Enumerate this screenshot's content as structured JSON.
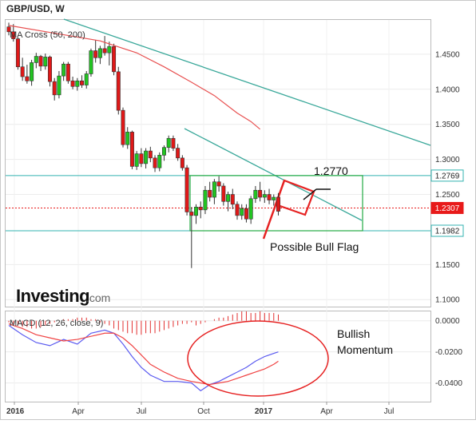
{
  "chart_data": [
    {
      "type": "candlestick",
      "title": "GBP/USD, W",
      "legend": "MA Cross (50, 200)",
      "ylim": [
        1.09,
        1.5
      ],
      "y_ticks": [
        "1.4500",
        "1.4000",
        "1.3500",
        "1.3000",
        "1.2500",
        "1.1500",
        "1.1000"
      ],
      "price_tags": [
        {
          "name": "upper",
          "label": "1.2769",
          "value": 1.2769,
          "color": "#33b3b0"
        },
        {
          "name": "current",
          "label": "1.2307",
          "value": 1.2307,
          "color": "#e81a1a"
        },
        {
          "name": "lower",
          "label": "1.1982",
          "value": 1.1982,
          "color": "#33b3b0"
        }
      ],
      "annotations": {
        "level_label": "1.2770",
        "pattern_label": "Possible Bull Flag"
      },
      "grid": true,
      "candles": [
        [
          1.489,
          1.495,
          1.477,
          1.482
        ],
        [
          1.482,
          1.493,
          1.468,
          1.472
        ],
        [
          1.472,
          1.474,
          1.428,
          1.432
        ],
        [
          1.432,
          1.445,
          1.412,
          1.418
        ],
        [
          1.418,
          1.435,
          1.408,
          1.412
        ],
        [
          1.412,
          1.442,
          1.405,
          1.438
        ],
        [
          1.438,
          1.452,
          1.43,
          1.447
        ],
        [
          1.447,
          1.449,
          1.426,
          1.433
        ],
        [
          1.433,
          1.451,
          1.428,
          1.446
        ],
        [
          1.446,
          1.448,
          1.404,
          1.411
        ],
        [
          1.411,
          1.416,
          1.384,
          1.392
        ],
        [
          1.392,
          1.426,
          1.387,
          1.419
        ],
        [
          1.419,
          1.439,
          1.412,
          1.436
        ],
        [
          1.436,
          1.439,
          1.408,
          1.412
        ],
        [
          1.412,
          1.418,
          1.4,
          1.404
        ],
        [
          1.404,
          1.416,
          1.398,
          1.412
        ],
        [
          1.412,
          1.42,
          1.402,
          1.406
        ],
        [
          1.406,
          1.426,
          1.401,
          1.422
        ],
        [
          1.422,
          1.458,
          1.418,
          1.455
        ],
        [
          1.455,
          1.47,
          1.438,
          1.445
        ],
        [
          1.445,
          1.462,
          1.436,
          1.458
        ],
        [
          1.458,
          1.476,
          1.448,
          1.452
        ],
        [
          1.452,
          1.468,
          1.434,
          1.461
        ],
        [
          1.461,
          1.465,
          1.42,
          1.425
        ],
        [
          1.425,
          1.432,
          1.364,
          1.37
        ],
        [
          1.37,
          1.374,
          1.317,
          1.321
        ],
        [
          1.321,
          1.346,
          1.315,
          1.339
        ],
        [
          1.339,
          1.341,
          1.286,
          1.29
        ],
        [
          1.29,
          1.312,
          1.285,
          1.308
        ],
        [
          1.308,
          1.316,
          1.289,
          1.294
        ],
        [
          1.294,
          1.316,
          1.287,
          1.312
        ],
        [
          1.312,
          1.318,
          1.296,
          1.302
        ],
        [
          1.302,
          1.306,
          1.282,
          1.288
        ],
        [
          1.288,
          1.31,
          1.283,
          1.306
        ],
        [
          1.306,
          1.32,
          1.298,
          1.317
        ],
        [
          1.317,
          1.334,
          1.31,
          1.33
        ],
        [
          1.33,
          1.334,
          1.312,
          1.316
        ],
        [
          1.316,
          1.322,
          1.298,
          1.302
        ],
        [
          1.302,
          1.306,
          1.284,
          1.288
        ],
        [
          1.288,
          1.292,
          1.22,
          1.225
        ],
        [
          1.225,
          1.232,
          1.145,
          1.22
        ],
        [
          1.22,
          1.236,
          1.208,
          1.232
        ],
        [
          1.232,
          1.24,
          1.216,
          1.228
        ],
        [
          1.228,
          1.262,
          1.222,
          1.256
        ],
        [
          1.256,
          1.268,
          1.24,
          1.246
        ],
        [
          1.246,
          1.272,
          1.236,
          1.268
        ],
        [
          1.268,
          1.276,
          1.254,
          1.262
        ],
        [
          1.262,
          1.266,
          1.234,
          1.24
        ],
        [
          1.24,
          1.254,
          1.226,
          1.25
        ],
        [
          1.25,
          1.258,
          1.229,
          1.236
        ],
        [
          1.236,
          1.24,
          1.214,
          1.22
        ],
        [
          1.22,
          1.236,
          1.214,
          1.23
        ],
        [
          1.23,
          1.236,
          1.21,
          1.215
        ],
        [
          1.215,
          1.248,
          1.208,
          1.244
        ],
        [
          1.244,
          1.262,
          1.238,
          1.256
        ],
        [
          1.256,
          1.268,
          1.24,
          1.246
        ],
        [
          1.246,
          1.256,
          1.238,
          1.25
        ],
        [
          1.25,
          1.258,
          1.236,
          1.242
        ],
        [
          1.242,
          1.25,
          1.234,
          1.246
        ],
        [
          1.246,
          1.252,
          1.22,
          1.226
        ]
      ],
      "ma50": [
        [
          0,
          1.491
        ],
        [
          10,
          1.48
        ],
        [
          20,
          1.469
        ],
        [
          28,
          1.452
        ],
        [
          34,
          1.432
        ],
        [
          40,
          1.41
        ],
        [
          45,
          1.391
        ],
        [
          50,
          1.366
        ],
        [
          53,
          1.354
        ],
        [
          55,
          1.343
        ]
      ]
    },
    {
      "type": "line",
      "title": "MACD (12, 26, close, 9)",
      "y_ticks": [
        "0.0000",
        "-0.0200",
        "-0.0400"
      ],
      "x_ticks": [
        "2016",
        "Apr",
        "Jul",
        "Oct",
        "2017",
        "Apr",
        "Jul"
      ],
      "annotation": "Bullish\nMomentum",
      "series": [
        {
          "name": "MACD",
          "color": "#5b5bf0",
          "values": [
            [
              0,
              -0.003
            ],
            [
              3,
              -0.009
            ],
            [
              6,
              -0.014
            ],
            [
              9,
              -0.016
            ],
            [
              12,
              -0.012
            ],
            [
              15,
              -0.015
            ],
            [
              18,
              -0.008
            ],
            [
              21,
              -0.006
            ],
            [
              23,
              -0.008
            ],
            [
              25,
              -0.015
            ],
            [
              27,
              -0.023
            ],
            [
              29,
              -0.03
            ],
            [
              31,
              -0.035
            ],
            [
              34,
              -0.039
            ],
            [
              37,
              -0.039
            ],
            [
              40,
              -0.04
            ],
            [
              42,
              -0.045
            ],
            [
              44,
              -0.041
            ],
            [
              46,
              -0.039
            ],
            [
              48,
              -0.036
            ],
            [
              50,
              -0.033
            ],
            [
              52,
              -0.03
            ],
            [
              54,
              -0.026
            ],
            [
              56,
              -0.023
            ],
            [
              58,
              -0.021
            ],
            [
              59,
              -0.02
            ]
          ]
        },
        {
          "name": "Signal",
          "color": "#f04444",
          "values": [
            [
              0,
              -0.002
            ],
            [
              3,
              -0.005
            ],
            [
              6,
              -0.009
            ],
            [
              9,
              -0.011
            ],
            [
              12,
              -0.013
            ],
            [
              15,
              -0.012
            ],
            [
              18,
              -0.01
            ],
            [
              21,
              -0.008
            ],
            [
              23,
              -0.008
            ],
            [
              25,
              -0.011
            ],
            [
              27,
              -0.016
            ],
            [
              29,
              -0.022
            ],
            [
              31,
              -0.028
            ],
            [
              34,
              -0.033
            ],
            [
              37,
              -0.037
            ],
            [
              40,
              -0.039
            ],
            [
              42,
              -0.04
            ],
            [
              44,
              -0.041
            ],
            [
              46,
              -0.04
            ],
            [
              48,
              -0.039
            ],
            [
              50,
              -0.037
            ],
            [
              52,
              -0.035
            ],
            [
              54,
              -0.033
            ],
            [
              56,
              -0.031
            ],
            [
              58,
              -0.028
            ],
            [
              59,
              -0.026
            ]
          ]
        }
      ],
      "histogram": [
        -0.001,
        -0.002,
        -0.003,
        -0.004,
        -0.004,
        -0.005,
        -0.005,
        -0.004,
        -0.003,
        -0.002,
        -0.001,
        0.0,
        0.001,
        0.001,
        0.001,
        0.002,
        0.002,
        0.002,
        0.001,
        0.001,
        -0.001,
        -0.002,
        -0.003,
        -0.005,
        -0.006,
        -0.007,
        -0.008,
        -0.008,
        -0.009,
        -0.009,
        -0.008,
        -0.008,
        -0.008,
        -0.007,
        -0.006,
        -0.005,
        -0.004,
        -0.003,
        -0.002,
        -0.002,
        -0.001,
        -0.003,
        -0.002,
        -0.001,
        0.0,
        0.001,
        0.002,
        0.002,
        0.003,
        0.004,
        0.005,
        0.006,
        0.006,
        0.005,
        0.005,
        0.006,
        0.005,
        0.005,
        0.005,
        0.004
      ]
    }
  ],
  "watermark": {
    "brand": "Investing",
    "suffix": ".com"
  }
}
